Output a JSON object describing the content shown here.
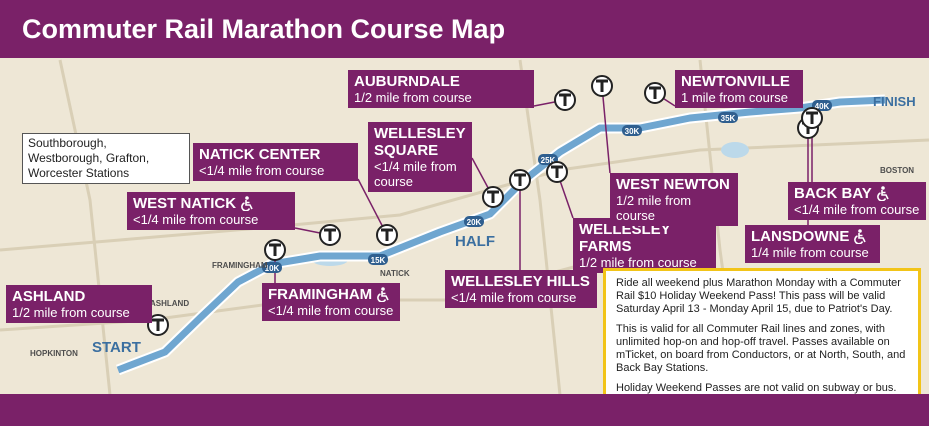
{
  "header": {
    "title": "Commuter Rail Marathon Course Map"
  },
  "note": {
    "text": "Southborough, Westborough, Grafton, Worcester Stations"
  },
  "stations": [
    {
      "name": "ASHLAND",
      "distance": "1/2 mile from course",
      "accessible": false
    },
    {
      "name": "FRAMINGHAM",
      "distance": "<1/4 mile from course",
      "accessible": true
    },
    {
      "name": "WEST NATICK",
      "distance": "<1/4 mile from course",
      "accessible": true
    },
    {
      "name": "NATICK CENTER",
      "distance": "<1/4 mile from course",
      "accessible": false
    },
    {
      "name": "WELLESLEY SQUARE",
      "distance": "<1/4 mile from course",
      "accessible": false
    },
    {
      "name": "WELLESLEY HILLS",
      "distance": "<1/4 mile from course",
      "accessible": false
    },
    {
      "name": "WELLESLEY FARMS",
      "distance": "1/2 mile from course",
      "accessible": false
    },
    {
      "name": "AUBURNDALE",
      "distance": "1/2 mile from course",
      "accessible": false
    },
    {
      "name": "WEST NEWTON",
      "distance": "1/2 mile from course",
      "accessible": false
    },
    {
      "name": "NEWTONVILLE",
      "distance": "1 mile from course",
      "accessible": false
    },
    {
      "name": "LANSDOWNE",
      "distance": "1/4 mile from course",
      "accessible": true
    },
    {
      "name": "BACK BAY",
      "distance": "<1/4 mile from course",
      "accessible": true
    }
  ],
  "map_labels": {
    "start": "START",
    "half": "HALF",
    "finish": "FINISH",
    "km": [
      "10K",
      "15K",
      "20K",
      "25K",
      "30K",
      "35K",
      "40K"
    ],
    "places": [
      "HOPKINTON",
      "ASHLAND",
      "FRAMINGHAM",
      "NATICK",
      "BOSTON"
    ]
  },
  "info": {
    "paragraphs": [
      "Ride all weekend plus Marathon Monday with a Commuter Rail $10 Holiday Weekend Pass! This pass will be valid Saturday April 13 - Monday April 15, due to Patriot's Day.",
      "This is valid for all Commuter Rail lines and zones, with unlimited hop-on and hop-off travel. Passes available on mTicket, on board from Conductors, or at North, South, and Back Bay Stations.",
      "Holiday Weekend Passes are not valid on subway or bus."
    ]
  }
}
